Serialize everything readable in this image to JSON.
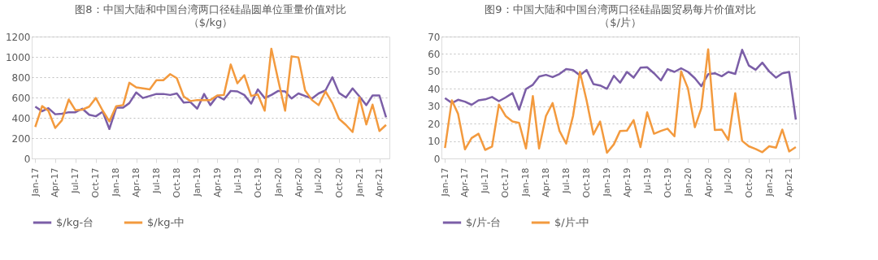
{
  "chart_data": [
    {
      "type": "line",
      "title": "图8：中国大陆和中国台湾两口径硅晶圆单位重量价值对比",
      "subtitle": "（$/kg）",
      "x": [
        "2017-01",
        "2017-02",
        "2017-03",
        "2017-04",
        "2017-05",
        "2017-06",
        "2017-07",
        "2017-08",
        "2017-09",
        "2017-10",
        "2017-11",
        "2017-12",
        "2018-01",
        "2018-02",
        "2018-03",
        "2018-04",
        "2018-05",
        "2018-06",
        "2018-07",
        "2018-08",
        "2018-09",
        "2018-10",
        "2018-11",
        "2018-12",
        "2019-01",
        "2019-02",
        "2019-03",
        "2019-04",
        "2019-05",
        "2019-06",
        "2019-07",
        "2019-08",
        "2019-09",
        "2019-10",
        "2019-11",
        "2019-12",
        "2020-01",
        "2020-02",
        "2020-03",
        "2020-04",
        "2020-05",
        "2020-06",
        "2020-07",
        "2020-08",
        "2020-09",
        "2020-10",
        "2020-11",
        "2020-12",
        "2021-01",
        "2021-02",
        "2021-03",
        "2021-04",
        "2021-05"
      ],
      "series": [
        {
          "name": "$/kg-台",
          "color": "#7b5ea7",
          "values": [
            510,
            465,
            495,
            435,
            440,
            455,
            455,
            490,
            430,
            415,
            460,
            290,
            500,
            500,
            545,
            650,
            595,
            615,
            635,
            635,
            625,
            640,
            550,
            555,
            490,
            635,
            525,
            615,
            580,
            665,
            660,
            625,
            540,
            680,
            595,
            625,
            665,
            660,
            590,
            640,
            615,
            590,
            640,
            670,
            800,
            645,
            600,
            690,
            610,
            525,
            620,
            620,
            405
          ]
        },
        {
          "name": "$/kg-中",
          "color": "#f39a3e",
          "values": [
            310,
            515,
            470,
            300,
            375,
            580,
            475,
            480,
            510,
            595,
            470,
            365,
            515,
            525,
            745,
            700,
            690,
            680,
            770,
            770,
            830,
            790,
            610,
            565,
            575,
            575,
            575,
            620,
            625,
            925,
            740,
            820,
            615,
            630,
            470,
            1080,
            770,
            470,
            1005,
            995,
            670,
            575,
            525,
            660,
            545,
            390,
            330,
            260,
            600,
            335,
            530,
            270,
            330
          ]
        }
      ],
      "xlim": [
        "2016-12-16",
        "2021-05-16"
      ],
      "xticks": [
        {
          "value": "2017-01",
          "label": "Jan-17"
        },
        {
          "value": "2017-04",
          "label": "Apr-17"
        },
        {
          "value": "2017-07",
          "label": "Jul-17"
        },
        {
          "value": "2017-10",
          "label": "Oct-17"
        },
        {
          "value": "2018-01",
          "label": "Jan-18"
        },
        {
          "value": "2018-04",
          "label": "Apr-18"
        },
        {
          "value": "2018-07",
          "label": "Jul-18"
        },
        {
          "value": "2018-10",
          "label": "Oct-18"
        },
        {
          "value": "2019-01",
          "label": "Jan-19"
        },
        {
          "value": "2019-04",
          "label": "Apr-19"
        },
        {
          "value": "2019-07",
          "label": "Jul-19"
        },
        {
          "value": "2019-10",
          "label": "Oct-19"
        },
        {
          "value": "2020-01",
          "label": "Jan-20"
        },
        {
          "value": "2020-04",
          "label": "Apr-20"
        },
        {
          "value": "2020-07",
          "label": "Jul-20"
        },
        {
          "value": "2020-10",
          "label": "Oct-20"
        },
        {
          "value": "2021-01",
          "label": "Jan-21"
        },
        {
          "value": "2021-04",
          "label": "Apr-21"
        }
      ],
      "ylim": [
        0,
        1200
      ],
      "yticks": [
        0,
        200,
        400,
        600,
        800,
        1000,
        1200
      ],
      "grid": "y",
      "legend": "bottom"
    },
    {
      "type": "line",
      "title": "图9：中国大陆和中国台湾两口径硅晶圆贸易每片价值对比",
      "subtitle": "（$/片）",
      "x": [
        "2017-01",
        "2017-02",
        "2017-03",
        "2017-04",
        "2017-05",
        "2017-06",
        "2017-07",
        "2017-08",
        "2017-09",
        "2017-10",
        "2017-11",
        "2017-12",
        "2018-01",
        "2018-02",
        "2018-03",
        "2018-04",
        "2018-05",
        "2018-06",
        "2018-07",
        "2018-08",
        "2018-09",
        "2018-10",
        "2018-11",
        "2018-12",
        "2019-01",
        "2019-02",
        "2019-03",
        "2019-04",
        "2019-05",
        "2019-06",
        "2019-07",
        "2019-08",
        "2019-09",
        "2019-10",
        "2019-11",
        "2019-12",
        "2020-01",
        "2020-02",
        "2020-03",
        "2020-04",
        "2020-05",
        "2020-06",
        "2020-07",
        "2020-08",
        "2020-09",
        "2020-10",
        "2020-11",
        "2020-12",
        "2021-01",
        "2021-02",
        "2021-03",
        "2021-04",
        "2021-05"
      ],
      "series": [
        {
          "name": "$/片-台",
          "color": "#7b5ea7",
          "values": [
            34.7,
            31.8,
            33.7,
            32.6,
            30.8,
            33.4,
            33.9,
            35.3,
            32.9,
            35,
            37.5,
            28,
            39.9,
            42.3,
            47,
            48,
            46.7,
            48.5,
            51.3,
            50.8,
            47.7,
            50.8,
            42.7,
            41.9,
            40,
            47.5,
            43.5,
            49.7,
            46.4,
            52.1,
            52.4,
            48.9,
            44.8,
            51.3,
            49.7,
            51.8,
            49.7,
            46.1,
            41.5,
            48.4,
            48.9,
            47.2,
            49.7,
            48.5,
            62.4,
            53.4,
            50.9,
            55,
            50,
            46.4,
            48.9,
            49.7,
            22.3
          ]
        },
        {
          "name": "$/片-中",
          "color": "#f39a3e",
          "values": [
            6,
            33.4,
            25.6,
            5.2,
            11.7,
            14.2,
            4.9,
            6.8,
            30.9,
            24.4,
            21.2,
            20.4,
            5.7,
            35.8,
            5.7,
            24.4,
            31.8,
            15.8,
            8.5,
            24.4,
            49.7,
            33.4,
            13.8,
            21.2,
            3.3,
            8.1,
            15.8,
            16,
            22,
            6.5,
            26.5,
            14.2,
            15.8,
            17.1,
            12.7,
            50,
            40.2,
            17.9,
            28.8,
            62.7,
            16.3,
            16.6,
            10.6,
            37.5,
            10.1,
            7,
            5.4,
            3.6,
            7,
            6.2,
            16.6,
            4,
            6.5
          ]
        }
      ],
      "xlim": [
        "2016-12-16",
        "2021-05-16"
      ],
      "xticks": [
        {
          "value": "2017-01",
          "label": "Jan-17"
        },
        {
          "value": "2017-04",
          "label": "Apr-17"
        },
        {
          "value": "2017-07",
          "label": "Jul-17"
        },
        {
          "value": "2017-10",
          "label": "Oct-17"
        },
        {
          "value": "2018-01",
          "label": "Jan-18"
        },
        {
          "value": "2018-04",
          "label": "Apr-18"
        },
        {
          "value": "2018-07",
          "label": "Jul-18"
        },
        {
          "value": "2018-10",
          "label": "Oct-18"
        },
        {
          "value": "2019-01",
          "label": "Jan-19"
        },
        {
          "value": "2019-04",
          "label": "Apr-19"
        },
        {
          "value": "2019-07",
          "label": "Jul-19"
        },
        {
          "value": "2019-10",
          "label": "Oct-19"
        },
        {
          "value": "2020-01",
          "label": "Jan-20"
        },
        {
          "value": "2020-04",
          "label": "Apr-20"
        },
        {
          "value": "2020-07",
          "label": "Jul-20"
        },
        {
          "value": "2020-10",
          "label": "Oct-20"
        },
        {
          "value": "2021-01",
          "label": "Jan-21"
        },
        {
          "value": "2021-04",
          "label": "Apr-21"
        }
      ],
      "ylim": [
        0,
        70
      ],
      "yticks": [
        0,
        10,
        20,
        30,
        40,
        50,
        60,
        70
      ],
      "grid": "y",
      "legend": "bottom"
    }
  ]
}
